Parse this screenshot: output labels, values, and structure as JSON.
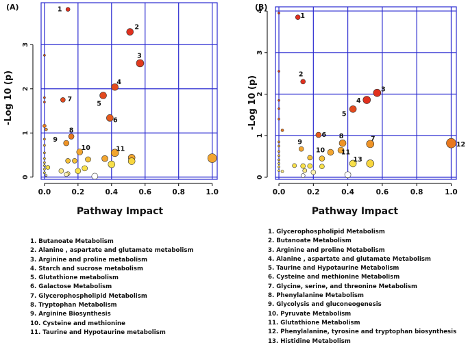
{
  "chart_data": [
    {
      "type": "scatter",
      "panel_label": "(A)",
      "xlabel": "Pathway Impact",
      "ylabel": "-Log 10 (p)",
      "xlim": [
        -0.02,
        1.03
      ],
      "ylim": [
        -0.05,
        3.95
      ],
      "x_ticks": [
        0.0,
        0.2,
        0.4,
        0.6,
        0.8,
        1.0
      ],
      "x_tick_labels": [
        "0.0",
        "0.2",
        "0.4",
        "0.6",
        "0.8",
        "1.0"
      ],
      "y_ticks": [
        0,
        1,
        2,
        3
      ],
      "y_tick_labels": [
        "0",
        "1",
        "2",
        "3"
      ],
      "grid": true,
      "labeled_points": [
        {
          "id": "1",
          "x": 0.14,
          "y": 3.8,
          "r": 3.0,
          "color": "#e0301e"
        },
        {
          "id": "2",
          "x": 0.51,
          "y": 3.29,
          "r": 5.0,
          "color": "#e0301e"
        },
        {
          "id": "3",
          "x": 0.57,
          "y": 2.58,
          "r": 5.5,
          "color": "#e03a1e"
        },
        {
          "id": "4",
          "x": 0.42,
          "y": 2.04,
          "r": 5.0,
          "color": "#e24a1e"
        },
        {
          "id": "5",
          "x": 0.35,
          "y": 1.85,
          "r": 5.0,
          "color": "#e24a1e"
        },
        {
          "id": "6",
          "x": 0.39,
          "y": 1.34,
          "r": 5.0,
          "color": "#e55a1e"
        },
        {
          "id": "7",
          "x": 0.11,
          "y": 1.75,
          "r": 3.5,
          "color": "#e24a1e"
        },
        {
          "id": "8",
          "x": 0.16,
          "y": 0.92,
          "r": 4.0,
          "color": "#e8781f"
        },
        {
          "id": "9",
          "x": 0.13,
          "y": 0.77,
          "r": 4.0,
          "color": "#ee9326"
        },
        {
          "id": "10",
          "x": 0.21,
          "y": 0.57,
          "r": 4.5,
          "color": "#f2a530"
        },
        {
          "id": "11",
          "x": 0.42,
          "y": 0.55,
          "r": 5.5,
          "color": "#f2a530"
        }
      ],
      "other_points": [
        {
          "x": 0.0,
          "y": 2.76,
          "r": 1.5,
          "color": "#e24a1e"
        },
        {
          "x": 0.0,
          "y": 1.8,
          "r": 1.5,
          "color": "#e24a1e"
        },
        {
          "x": 0.0,
          "y": 1.7,
          "r": 1.5,
          "color": "#e24a1e"
        },
        {
          "x": 0.0,
          "y": 1.16,
          "r": 2.5,
          "color": "#e8781f"
        },
        {
          "x": 0.01,
          "y": 1.08,
          "r": 2.0,
          "color": "#ee9326"
        },
        {
          "x": 0.0,
          "y": 0.86,
          "r": 1.5,
          "color": "#ee9326"
        },
        {
          "x": 0.0,
          "y": 0.72,
          "r": 1.5,
          "color": "#f2a530"
        },
        {
          "x": 0.0,
          "y": 0.55,
          "r": 1.5,
          "color": "#f2a530"
        },
        {
          "x": 0.0,
          "y": 0.42,
          "r": 1.5,
          "color": "#f5c038"
        },
        {
          "x": 0.0,
          "y": 0.33,
          "r": 1.5,
          "color": "#f5c038"
        },
        {
          "x": 0.0,
          "y": 0.26,
          "r": 1.5,
          "color": "#f8d63e"
        },
        {
          "x": 0.0,
          "y": 0.18,
          "r": 1.5,
          "color": "#f8d63e"
        },
        {
          "x": 0.0,
          "y": 0.1,
          "r": 1.5,
          "color": "#f8e04a"
        },
        {
          "x": 0.02,
          "y": 0.22,
          "r": 3.0,
          "color": "#f8e04a"
        },
        {
          "x": 0.01,
          "y": 0.04,
          "r": 1.5,
          "color": "#fbe884"
        },
        {
          "x": 0.14,
          "y": 0.37,
          "r": 3.5,
          "color": "#f5c038"
        },
        {
          "x": 0.18,
          "y": 0.37,
          "r": 3.5,
          "color": "#f5c038"
        },
        {
          "x": 0.26,
          "y": 0.4,
          "r": 4.0,
          "color": "#f5c038"
        },
        {
          "x": 0.36,
          "y": 0.42,
          "r": 4.5,
          "color": "#f2a530"
        },
        {
          "x": 0.52,
          "y": 0.44,
          "r": 5.0,
          "color": "#f2a530"
        },
        {
          "x": 0.52,
          "y": 0.36,
          "r": 5.0,
          "color": "#f8d63e"
        },
        {
          "x": 1.0,
          "y": 0.43,
          "r": 6.5,
          "color": "#f2a530"
        },
        {
          "x": 0.24,
          "y": 0.2,
          "r": 4.0,
          "color": "#f8e04a"
        },
        {
          "x": 0.2,
          "y": 0.14,
          "r": 4.0,
          "color": "#f8e04a"
        },
        {
          "x": 0.1,
          "y": 0.14,
          "r": 3.5,
          "color": "#fbe884"
        },
        {
          "x": 0.14,
          "y": 0.08,
          "r": 3.0,
          "color": "#fbe884"
        },
        {
          "x": 0.13,
          "y": 0.06,
          "r": 3.0,
          "color": "#fdf2b0"
        },
        {
          "x": 0.4,
          "y": 0.29,
          "r": 5.0,
          "color": "#f8e04a"
        },
        {
          "x": 0.3,
          "y": 0.02,
          "r": 4.5,
          "color": "#ffffff"
        }
      ],
      "legend": [
        "1. Butanoate Metabolism",
        "2. Alanine , aspartate and glutamate metabolism",
        "3. Arginine and proline metabolism",
        "4. Starch and sucrose metabolism",
        "5. Glutathione metabolism",
        "6. Galactose Metabolism",
        "7. Glycerophospholipid Metabolism",
        "8. Tryptophan Metabolism",
        "9. Arginine Biosynthesis",
        "10. Cysteine and methionine",
        "11. Taurine and Hypotaurine metabolism"
      ]
    },
    {
      "type": "scatter",
      "panel_label": "(B)",
      "xlabel": "Pathway Impact",
      "ylabel": "-Log 10 (p)",
      "xlim": [
        -0.02,
        1.03
      ],
      "ylim": [
        -0.05,
        4.1
      ],
      "x_ticks": [
        0.0,
        0.2,
        0.4,
        0.6,
        0.8,
        1.0
      ],
      "x_tick_labels": [
        "0.0",
        "0.2",
        "0.4",
        "0.6",
        "0.8",
        "1.0"
      ],
      "y_ticks": [
        0,
        1,
        2,
        3,
        4
      ],
      "y_tick_labels": [
        "0",
        "1",
        "2",
        "3",
        "4"
      ],
      "grid": true,
      "labeled_points": [
        {
          "id": "1",
          "x": 0.11,
          "y": 3.85,
          "r": 3.5,
          "color": "#e0301e"
        },
        {
          "id": "2",
          "x": 0.14,
          "y": 2.3,
          "r": 3.5,
          "color": "#e0301e"
        },
        {
          "id": "3",
          "x": 0.57,
          "y": 2.03,
          "r": 5.5,
          "color": "#e0301e"
        },
        {
          "id": "4",
          "x": 0.51,
          "y": 1.86,
          "r": 5.5,
          "color": "#e0301e"
        },
        {
          "id": "5",
          "x": 0.43,
          "y": 1.64,
          "r": 5.0,
          "color": "#e24a1e"
        },
        {
          "id": "6",
          "x": 0.23,
          "y": 1.02,
          "r": 4.0,
          "color": "#e55a1e"
        },
        {
          "id": "7",
          "x": 0.53,
          "y": 0.8,
          "r": 5.5,
          "color": "#ee9326"
        },
        {
          "id": "8",
          "x": 0.37,
          "y": 0.82,
          "r": 5.0,
          "color": "#ee9326"
        },
        {
          "id": "9",
          "x": 0.13,
          "y": 0.68,
          "r": 3.5,
          "color": "#f2a530"
        },
        {
          "id": "10",
          "x": 0.3,
          "y": 0.6,
          "r": 4.5,
          "color": "#f2a530"
        },
        {
          "id": "11",
          "x": 0.36,
          "y": 0.65,
          "r": 4.5,
          "color": "#f2a530"
        },
        {
          "id": "12",
          "x": 1.0,
          "y": 0.82,
          "r": 7.0,
          "color": "#e8781f"
        },
        {
          "id": "13",
          "x": 0.43,
          "y": 0.33,
          "r": 5.0,
          "color": "#f8e04a"
        }
      ],
      "other_points": [
        {
          "x": 0.0,
          "y": 3.95,
          "r": 1.5,
          "color": "#e0301e"
        },
        {
          "x": 0.0,
          "y": 2.55,
          "r": 1.5,
          "color": "#e0301e"
        },
        {
          "x": 0.0,
          "y": 1.85,
          "r": 1.5,
          "color": "#e24a1e"
        },
        {
          "x": 0.0,
          "y": 1.65,
          "r": 1.5,
          "color": "#e24a1e"
        },
        {
          "x": 0.0,
          "y": 1.4,
          "r": 1.5,
          "color": "#e55a1e"
        },
        {
          "x": 0.02,
          "y": 1.13,
          "r": 2.0,
          "color": "#e8781f"
        },
        {
          "x": 0.0,
          "y": 0.85,
          "r": 1.5,
          "color": "#ee9326"
        },
        {
          "x": 0.0,
          "y": 0.75,
          "r": 1.5,
          "color": "#f2a530"
        },
        {
          "x": 0.0,
          "y": 0.62,
          "r": 1.5,
          "color": "#f2a530"
        },
        {
          "x": 0.0,
          "y": 0.52,
          "r": 1.5,
          "color": "#f5c038"
        },
        {
          "x": 0.0,
          "y": 0.42,
          "r": 1.5,
          "color": "#f5c038"
        },
        {
          "x": 0.0,
          "y": 0.33,
          "r": 1.5,
          "color": "#f8d63e"
        },
        {
          "x": 0.0,
          "y": 0.25,
          "r": 1.5,
          "color": "#f8d63e"
        },
        {
          "x": 0.0,
          "y": 0.16,
          "r": 1.5,
          "color": "#f8e04a"
        },
        {
          "x": 0.02,
          "y": 0.14,
          "r": 2.0,
          "color": "#fbe884"
        },
        {
          "x": 0.18,
          "y": 0.47,
          "r": 3.5,
          "color": "#f5c038"
        },
        {
          "x": 0.25,
          "y": 0.45,
          "r": 4.0,
          "color": "#f5c038"
        },
        {
          "x": 0.09,
          "y": 0.28,
          "r": 3.0,
          "color": "#f8e04a"
        },
        {
          "x": 0.14,
          "y": 0.27,
          "r": 3.5,
          "color": "#f8e04a"
        },
        {
          "x": 0.18,
          "y": 0.27,
          "r": 3.5,
          "color": "#f8e04a"
        },
        {
          "x": 0.25,
          "y": 0.26,
          "r": 3.5,
          "color": "#f8e04a"
        },
        {
          "x": 0.53,
          "y": 0.33,
          "r": 5.5,
          "color": "#f8d63e"
        },
        {
          "x": 0.15,
          "y": 0.16,
          "r": 3.0,
          "color": "#fbe884"
        },
        {
          "x": 0.2,
          "y": 0.12,
          "r": 3.5,
          "color": "#fdf2b0"
        },
        {
          "x": 0.14,
          "y": 0.04,
          "r": 3.0,
          "color": "#ffffff"
        },
        {
          "x": 0.4,
          "y": 0.06,
          "r": 4.5,
          "color": "#ffffff"
        }
      ],
      "legend": [
        "1. Glycerophospholipid Metabolism",
        "2. Butanoate Metabolism",
        "3. Arginine and proline Metabolism",
        "4. Alanine , aspartate and glutamate Metabolism",
        "5. Taurine and Hypotaurine Metabolism",
        "6. Cysteine and methionine Metabolism",
        "7. Glycine, serine, and threonine Metabolism",
        "8. Phenylalanine Metabolism",
        "9. Glycolysis and gluconeogenesis",
        "10. Pyruvate Metabolism",
        "11. Glutathione Metabolism",
        "12. Phenylalanine, tyrosine and tryptophan biosynthesis",
        "13. Histidine Metabolism"
      ]
    }
  ]
}
